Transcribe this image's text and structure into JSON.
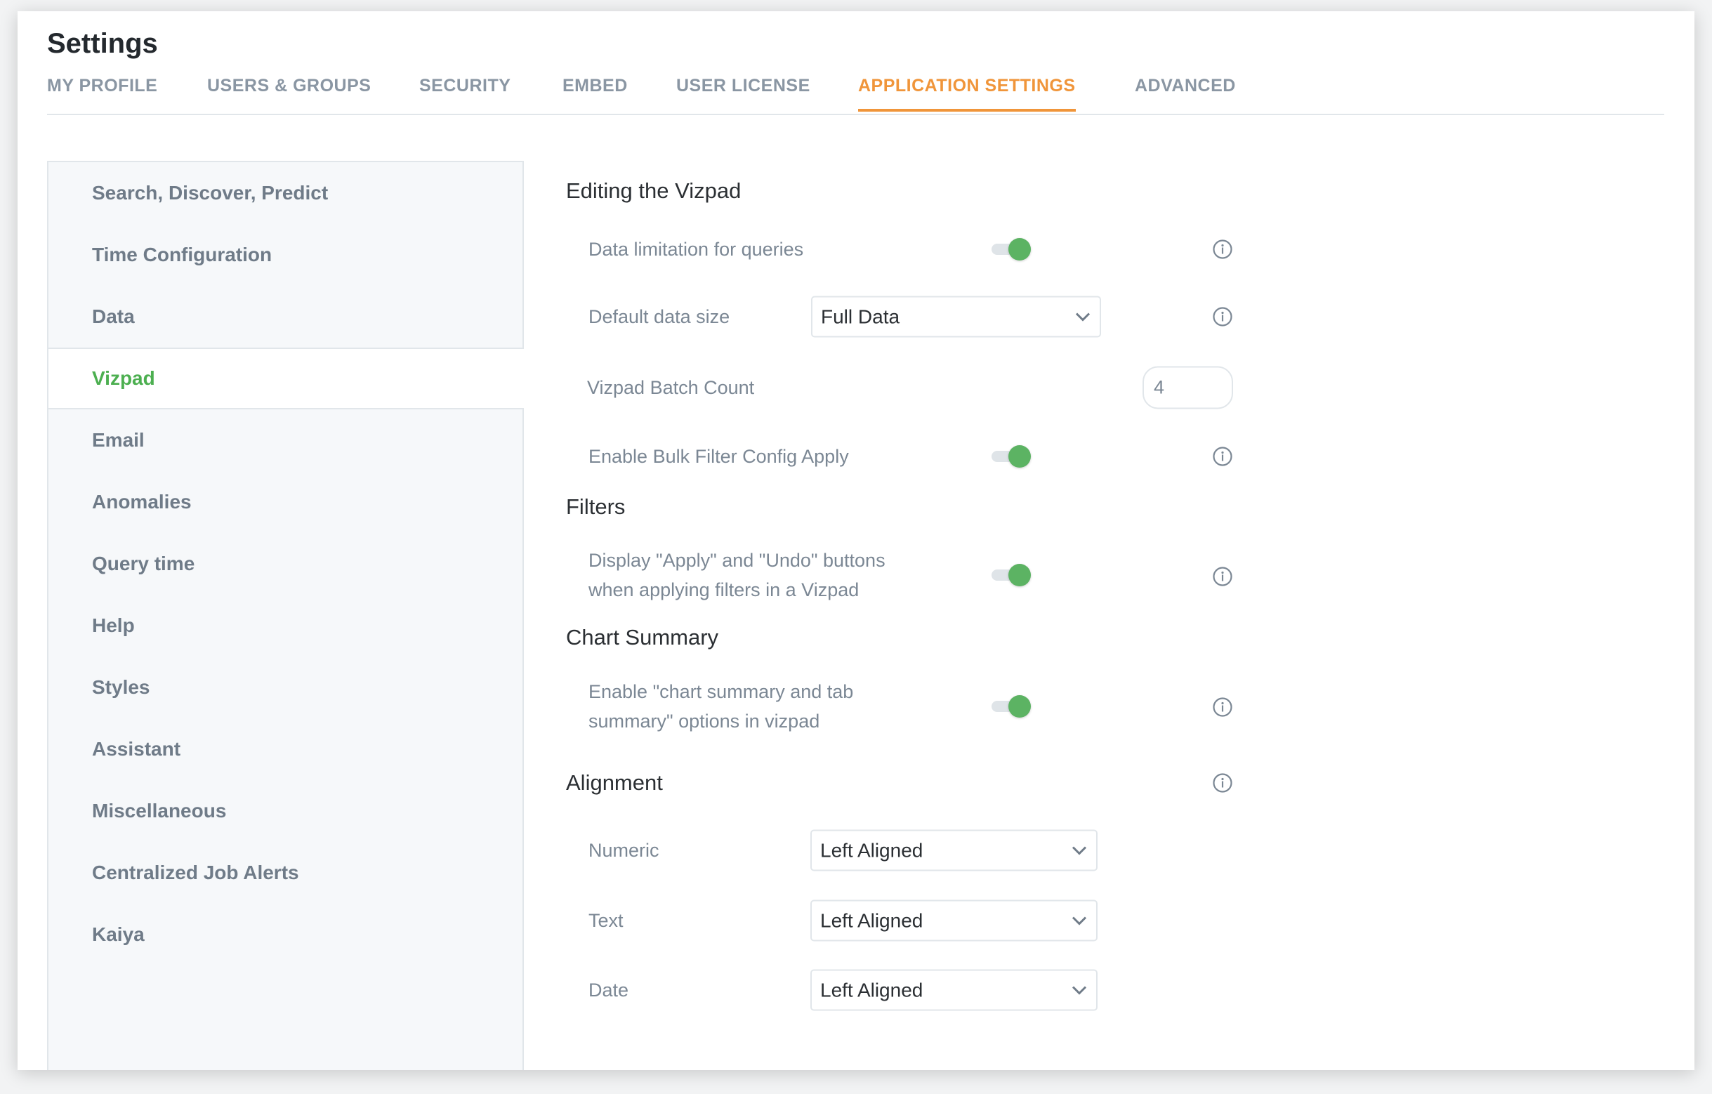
{
  "header": {
    "title": "Settings"
  },
  "tabs": [
    {
      "label": "MY PROFILE"
    },
    {
      "label": "USERS & GROUPS"
    },
    {
      "label": "SECURITY"
    },
    {
      "label": "EMBED"
    },
    {
      "label": "USER LICENSE"
    },
    {
      "label": "APPLICATION SETTINGS",
      "active": true
    },
    {
      "label": "ADVANCED"
    }
  ],
  "sidebar": {
    "items": [
      {
        "label": "Search, Discover, Predict"
      },
      {
        "label": "Time Configuration"
      },
      {
        "label": "Data"
      },
      {
        "label": "Vizpad",
        "active": true
      },
      {
        "label": "Email"
      },
      {
        "label": "Anomalies"
      },
      {
        "label": "Query time"
      },
      {
        "label": "Help"
      },
      {
        "label": "Styles"
      },
      {
        "label": "Assistant"
      },
      {
        "label": "Miscellaneous"
      },
      {
        "label": "Centralized Job Alerts"
      },
      {
        "label": "Kaiya"
      }
    ]
  },
  "main": {
    "editing": {
      "heading": "Editing the Vizpad",
      "data_limitation": {
        "label": "Data limitation for queries",
        "enabled": true
      },
      "default_data_size": {
        "label": "Default data size",
        "value": "Full Data"
      },
      "batch_count": {
        "label": "Vizpad Batch Count",
        "value": "4"
      },
      "bulk_filter": {
        "label": "Enable Bulk Filter Config Apply",
        "enabled": true
      }
    },
    "filters": {
      "heading": "Filters",
      "apply_undo": {
        "line1": "Display \"Apply\" and \"Undo\" buttons",
        "line2": "when applying filters in a Vizpad",
        "enabled": true
      }
    },
    "chart_summary": {
      "heading": "Chart Summary",
      "enable": {
        "line1": "Enable \"chart summary and tab",
        "line2": "summary\" options in vizpad",
        "enabled": true
      }
    },
    "alignment": {
      "heading": "Alignment",
      "numeric": {
        "label": "Numeric",
        "value": "Left Aligned"
      },
      "text": {
        "label": "Text",
        "value": "Left Aligned"
      },
      "date": {
        "label": "Date",
        "value": "Left Aligned"
      }
    }
  },
  "colors": {
    "accent": "#f0953a",
    "active_green": "#4caf50",
    "toggle_on": "#5cb363"
  }
}
